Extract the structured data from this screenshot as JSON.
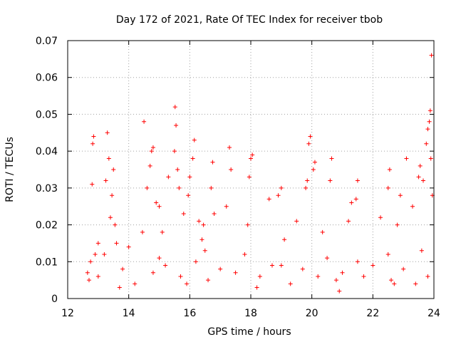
{
  "chart_data": {
    "type": "scatter",
    "title": "Day 172 of 2021, Rate Of TEC Index for receiver tbob",
    "xlabel": "GPS time / hours",
    "ylabel": "ROTI / TECUs",
    "xlim": [
      12,
      24
    ],
    "ylim": [
      0,
      0.07
    ],
    "x_ticks": [
      "12",
      "14",
      "16",
      "18",
      "20",
      "22",
      "24"
    ],
    "y_ticks": [
      "0",
      "0.01",
      "0.02",
      "0.03",
      "0.04",
      "0.05",
      "0.06",
      "0.07"
    ],
    "grid": true,
    "marker": "+",
    "series": [
      {
        "name": "ROTI",
        "color": "#ff0000",
        "x": [
          12.65,
          12.8,
          12.82,
          12.85,
          12.9,
          13.0,
          13.25,
          13.3,
          13.35,
          13.4,
          13.45,
          13.5,
          13.55,
          13.6,
          14.45,
          14.5,
          14.6,
          14.7,
          14.75,
          14.8,
          14.9,
          15.0,
          15.1,
          15.3,
          15.5,
          15.52,
          15.55,
          15.6,
          15.65,
          15.8,
          15.95,
          16.0,
          16.1,
          16.15,
          16.3,
          16.4,
          16.45,
          16.7,
          16.75,
          16.8,
          17.2,
          17.3,
          17.35,
          17.9,
          17.95,
          18.0,
          18.05,
          18.6,
          18.9,
          19.0,
          19.1,
          19.5,
          19.8,
          19.85,
          19.9,
          19.95,
          20.05,
          20.1,
          20.35,
          20.6,
          20.65,
          21.2,
          21.3,
          21.45,
          21.5,
          22.25,
          22.5,
          22.55,
          22.8,
          22.9,
          23.1,
          23.3,
          23.5,
          23.55,
          23.65,
          23.75,
          23.8,
          23.85,
          23.88,
          23.9,
          23.92,
          23.95,
          12.7,
          13.0,
          13.8,
          14.2,
          14.8,
          15.2,
          15.7,
          16.2,
          16.6,
          17.0,
          17.5,
          18.3,
          18.7,
          19.3,
          19.7,
          20.2,
          20.8,
          21.0,
          21.7,
          22.0,
          22.6,
          23.0,
          23.4,
          23.8,
          12.75,
          13.2,
          14.0,
          15.0,
          16.5,
          17.8,
          19.0,
          20.5,
          21.5,
          22.5,
          23.6,
          13.7,
          15.9,
          18.2,
          20.9,
          22.7
        ],
        "y": [
          0.007,
          0.031,
          0.042,
          0.044,
          0.012,
          0.015,
          0.032,
          0.045,
          0.038,
          0.022,
          0.028,
          0.035,
          0.02,
          0.015,
          0.018,
          0.048,
          0.03,
          0.036,
          0.04,
          0.041,
          0.026,
          0.025,
          0.018,
          0.033,
          0.04,
          0.052,
          0.047,
          0.035,
          0.03,
          0.023,
          0.028,
          0.033,
          0.038,
          0.043,
          0.021,
          0.016,
          0.02,
          0.03,
          0.037,
          0.023,
          0.025,
          0.041,
          0.035,
          0.02,
          0.033,
          0.038,
          0.039,
          0.027,
          0.028,
          0.03,
          0.016,
          0.021,
          0.03,
          0.032,
          0.042,
          0.044,
          0.035,
          0.037,
          0.018,
          0.032,
          0.038,
          0.021,
          0.026,
          0.027,
          0.032,
          0.022,
          0.03,
          0.035,
          0.02,
          0.028,
          0.038,
          0.025,
          0.033,
          0.036,
          0.032,
          0.042,
          0.046,
          0.048,
          0.051,
          0.038,
          0.066,
          0.028,
          0.005,
          0.006,
          0.008,
          0.004,
          0.007,
          0.009,
          0.006,
          0.01,
          0.005,
          0.008,
          0.007,
          0.006,
          0.009,
          0.004,
          0.008,
          0.006,
          0.005,
          0.007,
          0.006,
          0.009,
          0.005,
          0.008,
          0.004,
          0.006,
          0.01,
          0.012,
          0.014,
          0.011,
          0.013,
          0.012,
          0.009,
          0.011,
          0.01,
          0.012,
          0.013,
          0.003,
          0.004,
          0.003,
          0.002,
          0.004
        ]
      }
    ]
  }
}
